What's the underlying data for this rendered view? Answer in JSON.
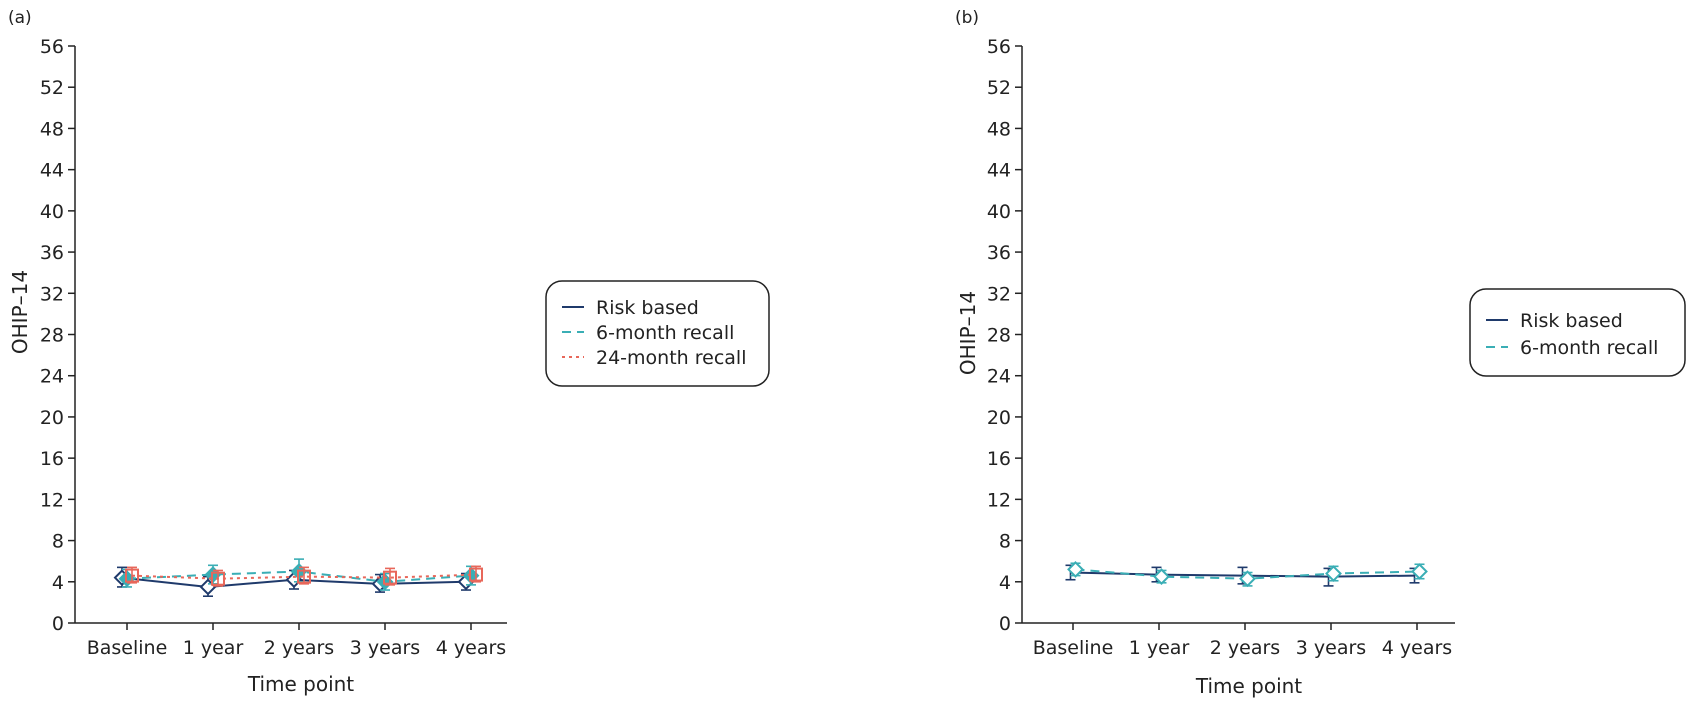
{
  "chart_data": [
    {
      "panel_label": "(a)",
      "type": "line",
      "xlabel": "Time point",
      "ylabel": "OHIP–14",
      "categories": [
        "Baseline",
        "1 year",
        "2 years",
        "3 years",
        "4 years"
      ],
      "ylim": [
        0,
        56
      ],
      "yticks": [
        0,
        4,
        8,
        12,
        16,
        20,
        24,
        28,
        32,
        36,
        40,
        44,
        48,
        52,
        56
      ],
      "grid": false,
      "legend_position": "right",
      "series": [
        {
          "name": "Risk based",
          "color": "#1f3a6b",
          "dash": "solid",
          "marker": "diamond-open",
          "values": [
            4.4,
            3.5,
            4.2,
            3.8,
            4.0
          ],
          "err_low": [
            3.5,
            2.6,
            3.3,
            3.0,
            3.2
          ],
          "err_high": [
            5.4,
            4.5,
            5.1,
            4.7,
            4.8
          ]
        },
        {
          "name": "6-month recall",
          "color": "#3aaeb5",
          "dash": "dashed",
          "marker": "diamond-filled",
          "values": [
            4.3,
            4.7,
            5.0,
            4.0,
            4.6
          ],
          "err_low": [
            3.5,
            3.8,
            4.0,
            3.2,
            3.7
          ],
          "err_high": [
            5.2,
            5.6,
            6.2,
            4.8,
            5.5
          ]
        },
        {
          "name": "24-month recall",
          "color": "#e8675a",
          "dash": "dotted",
          "marker": "square-open",
          "values": [
            4.6,
            4.3,
            4.5,
            4.4,
            4.7
          ],
          "err_low": [
            3.9,
            3.6,
            3.8,
            3.7,
            4.0
          ],
          "err_high": [
            5.4,
            5.1,
            5.4,
            5.3,
            5.5
          ]
        }
      ]
    },
    {
      "panel_label": "(b)",
      "type": "line",
      "xlabel": "Time point",
      "ylabel": "OHIP–14",
      "categories": [
        "Baseline",
        "1 year",
        "2 years",
        "3 years",
        "4 years"
      ],
      "ylim": [
        0,
        56
      ],
      "yticks": [
        0,
        4,
        8,
        12,
        16,
        20,
        24,
        28,
        32,
        36,
        40,
        44,
        48,
        52,
        56
      ],
      "grid": false,
      "legend_position": "right",
      "series": [
        {
          "name": "Risk based",
          "color": "#1f3a6b",
          "dash": "solid",
          "marker": "none",
          "values": [
            4.9,
            4.7,
            4.6,
            4.5,
            4.6
          ],
          "err_low": [
            4.2,
            4.0,
            3.8,
            3.6,
            3.9
          ],
          "err_high": [
            5.6,
            5.4,
            5.4,
            5.3,
            5.3
          ]
        },
        {
          "name": "6-month recall",
          "color": "#3aaeb5",
          "dash": "dashed",
          "marker": "diamond-open",
          "values": [
            5.2,
            4.5,
            4.3,
            4.8,
            5.0
          ],
          "err_low": [
            4.6,
            3.9,
            3.6,
            4.1,
            4.3
          ],
          "err_high": [
            5.8,
            5.1,
            4.9,
            5.5,
            5.7
          ]
        }
      ]
    }
  ]
}
